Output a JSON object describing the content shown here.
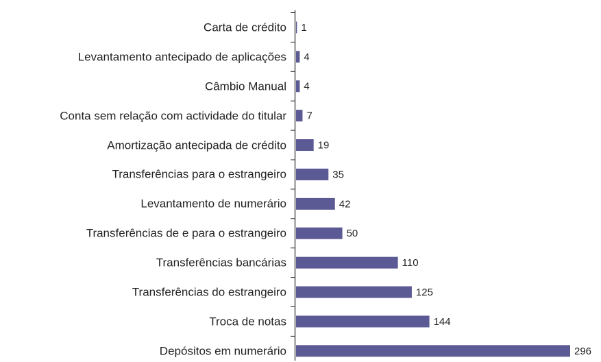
{
  "chart_data": {
    "type": "bar",
    "orientation": "horizontal",
    "color": "#5c5a94",
    "categories": [
      "Carta de crédito",
      "Levantamento antecipado de aplicações",
      "Câmbio Manual",
      "Conta sem relação com actividade do titular",
      "Amortização antecipada de crédito",
      "Transferências para o estrangeiro",
      "Levantamento de numerário",
      "Transferências de e para o estrangeiro",
      "Transferências bancárias",
      "Transferências do estrangeiro",
      "Troca de notas",
      "Depósitos em numerário"
    ],
    "values": [
      1,
      4,
      4,
      7,
      19,
      35,
      42,
      50,
      110,
      125,
      144,
      296
    ]
  }
}
